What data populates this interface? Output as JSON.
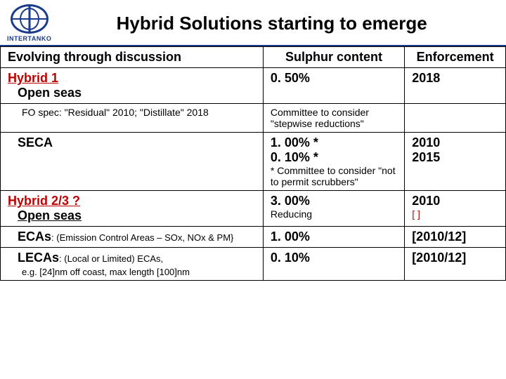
{
  "logo_text": "INTERTANKO",
  "title": "Hybrid Solutions starting to emerge",
  "headers": {
    "c1": "Evolving through discussion",
    "c2": "Sulphur content",
    "c3": "Enforcement"
  },
  "h1": {
    "label": "Hybrid 1",
    "open_seas": "Open seas",
    "open_pct": "0. 50%",
    "open_year": "2018",
    "fo_spec": "FO spec: \"Residual\" 2010; \"Distillate\" 2018",
    "fo_note": "Committee to consider \"stepwise reductions\"",
    "seca": "SECA",
    "seca_pct1": "1. 00% *",
    "seca_pct2": "0. 10% *",
    "seca_note": "* Committee to consider \"not to permit scrubbers\"",
    "seca_y1": "2010",
    "seca_y2": "2015"
  },
  "h2": {
    "label": "Hybrid 2/3 ?",
    "open_seas": "Open seas",
    "open_pct": "3. 00%",
    "open_reducing": "Reducing",
    "open_year": "2010",
    "open_year_br": "[   ]",
    "ecas_label": "ECAs",
    "ecas_desc": ": (Emission Control Areas – SOx, NOx & PM}",
    "ecas_pct": "1. 00%",
    "ecas_year": "[2010/12]",
    "lecas_label": "LECAs",
    "lecas_desc": ": (Local or Limited) ECAs,",
    "lecas_eg": "e.g. [24]nm off coast, max length [100]nm",
    "lecas_pct": "0. 10%",
    "lecas_year": "[2010/12]"
  }
}
